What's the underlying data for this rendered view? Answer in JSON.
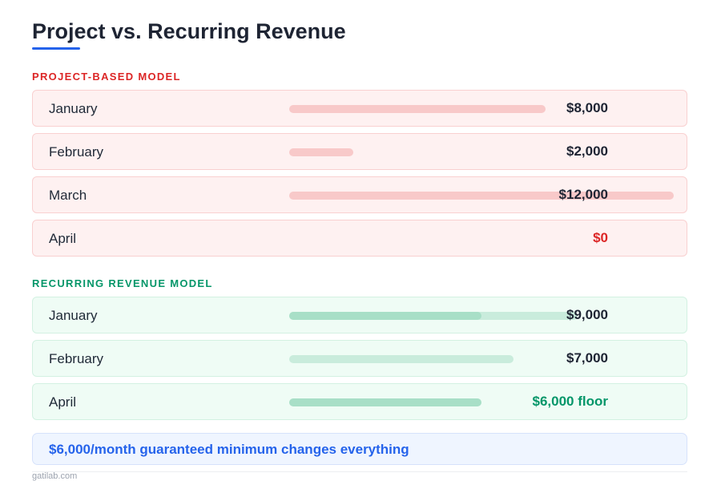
{
  "title": "Project vs. Recurring Revenue",
  "colors": {
    "accent": "#2563eb",
    "project": "#dc2626",
    "recurring": "#059669",
    "project_bar": "#f8c9c9",
    "recurring_bar": "#c9ecdc",
    "recurring_floor_bar": "#a8dfc7"
  },
  "scale_max": 12000,
  "project": {
    "heading": "PROJECT-BASED MODEL",
    "rows": [
      {
        "month": "January",
        "value": 8000,
        "label": "$8,000"
      },
      {
        "month": "February",
        "value": 2000,
        "label": "$2,000"
      },
      {
        "month": "March",
        "value": 12000,
        "label": "$12,000"
      },
      {
        "month": "April",
        "value": 0,
        "label": "$0"
      }
    ]
  },
  "recurring": {
    "heading": "RECURRING REVENUE MODEL",
    "floor": 6000,
    "rows": [
      {
        "month": "January",
        "value": 9000,
        "label": "$9,000"
      },
      {
        "month": "February",
        "value": 7000,
        "label": "$7,000"
      },
      {
        "month": "April",
        "value": 6000,
        "label": "$6,000 floor"
      }
    ]
  },
  "callout": "$6,000/month guaranteed minimum changes everything",
  "footer": "gatilab.com"
}
